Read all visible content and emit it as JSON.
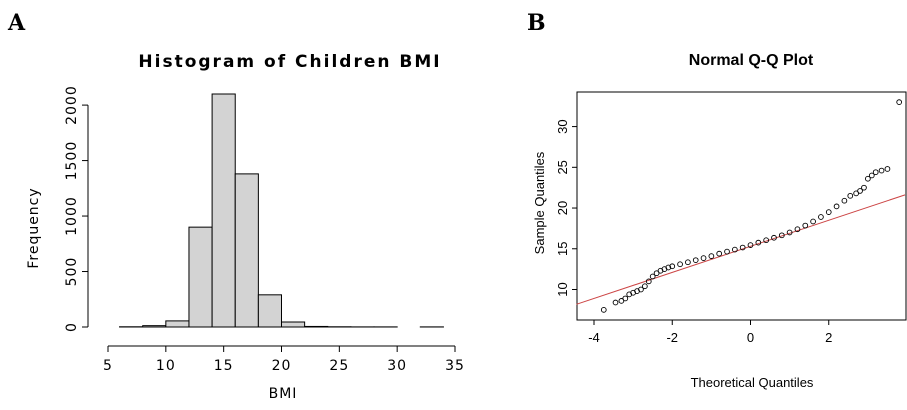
{
  "panels": {
    "a_label": "A",
    "b_label": "B"
  },
  "chart_data": [
    {
      "type": "bar",
      "title": "Histogram of Children BMI",
      "xlabel": "BMI",
      "ylabel": "Frequency",
      "bins": [
        {
          "x0": 6,
          "x1": 8,
          "value": 2
        },
        {
          "x0": 8,
          "x1": 10,
          "value": 12
        },
        {
          "x0": 10,
          "x1": 12,
          "value": 55
        },
        {
          "x0": 12,
          "x1": 14,
          "value": 900
        },
        {
          "x0": 14,
          "x1": 16,
          "value": 2100
        },
        {
          "x0": 16,
          "x1": 18,
          "value": 1380
        },
        {
          "x0": 18,
          "x1": 20,
          "value": 290
        },
        {
          "x0": 20,
          "x1": 22,
          "value": 45
        },
        {
          "x0": 22,
          "x1": 24,
          "value": 5
        },
        {
          "x0": 24,
          "x1": 26,
          "value": 2
        },
        {
          "x0": 26,
          "x1": 28,
          "value": 1
        },
        {
          "x0": 28,
          "x1": 30,
          "value": 1
        },
        {
          "x0": 30,
          "x1": 32,
          "value": 0
        },
        {
          "x0": 32,
          "x1": 34,
          "value": 1
        }
      ],
      "xlim": [
        5,
        35
      ],
      "ylim": [
        0,
        2100
      ],
      "xticks": [
        5,
        10,
        15,
        20,
        25,
        30,
        35
      ],
      "yticks": [
        0,
        500,
        1000,
        1500,
        2000
      ],
      "bar_color": "#d3d3d3"
    },
    {
      "type": "scatter",
      "title": "Normal Q-Q Plot",
      "xlabel": "Theoretical Quantiles",
      "ylabel": "Sample Quantiles",
      "xlim": [
        -4,
        4
      ],
      "ylim": [
        6.5,
        34
      ],
      "xticks": [
        -4,
        -2,
        0,
        2
      ],
      "yticks": [
        10,
        15,
        20,
        25,
        30
      ],
      "reference_line": {
        "intercept": 15.3,
        "slope": 1.6,
        "color": "#cc4444"
      },
      "points": [
        [
          -3.75,
          7.5
        ],
        [
          -3.45,
          8.4
        ],
        [
          -3.3,
          8.6
        ],
        [
          -3.2,
          8.9
        ],
        [
          -3.1,
          9.4
        ],
        [
          -3.0,
          9.6
        ],
        [
          -2.9,
          9.8
        ],
        [
          -2.8,
          10.0
        ],
        [
          -2.7,
          10.4
        ],
        [
          -2.6,
          11.0
        ],
        [
          -2.5,
          11.6
        ],
        [
          -2.4,
          12.0
        ],
        [
          -2.3,
          12.3
        ],
        [
          -2.2,
          12.5
        ],
        [
          -2.1,
          12.7
        ],
        [
          -2.0,
          12.85
        ],
        [
          -1.8,
          13.1
        ],
        [
          -1.6,
          13.35
        ],
        [
          -1.4,
          13.6
        ],
        [
          -1.2,
          13.85
        ],
        [
          -1.0,
          14.1
        ],
        [
          -0.8,
          14.4
        ],
        [
          -0.6,
          14.65
        ],
        [
          -0.4,
          14.9
        ],
        [
          -0.2,
          15.15
        ],
        [
          0.0,
          15.45
        ],
        [
          0.2,
          15.75
        ],
        [
          0.4,
          16.05
        ],
        [
          0.6,
          16.35
        ],
        [
          0.8,
          16.65
        ],
        [
          1.0,
          17.0
        ],
        [
          1.2,
          17.4
        ],
        [
          1.4,
          17.85
        ],
        [
          1.6,
          18.35
        ],
        [
          1.8,
          18.9
        ],
        [
          2.0,
          19.5
        ],
        [
          2.2,
          20.2
        ],
        [
          2.4,
          20.9
        ],
        [
          2.55,
          21.5
        ],
        [
          2.7,
          21.8
        ],
        [
          2.8,
          22.1
        ],
        [
          2.9,
          22.5
        ],
        [
          3.0,
          23.6
        ],
        [
          3.1,
          24.0
        ],
        [
          3.2,
          24.4
        ],
        [
          3.35,
          24.6
        ],
        [
          3.5,
          24.8
        ],
        [
          3.8,
          33.0
        ]
      ]
    }
  ]
}
